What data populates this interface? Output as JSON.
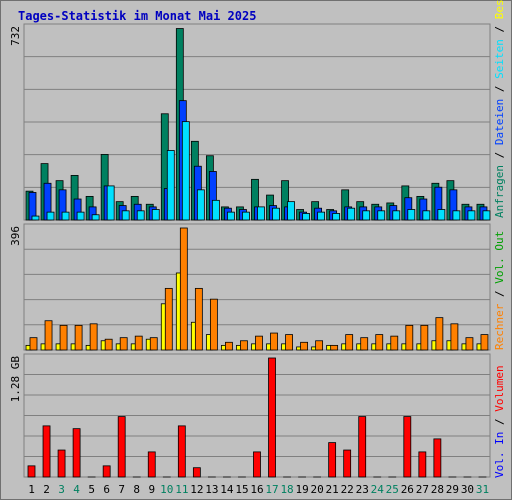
{
  "title": "Tages-Statistik im Monat Mai 2025",
  "colors": {
    "anfragen": "#008060",
    "dateien": "#0040ff",
    "seiten": "#00e0ff",
    "besuche": "#ffff00",
    "rechner": "#ff8000",
    "volumen": "#ff0000",
    "kbin": "#0000ff",
    "kbout": "#00a000",
    "grid": "#808080",
    "panel": "#c0c0c0",
    "weekday": "#000000",
    "weekend": "#008060"
  },
  "right_labels": {
    "top": [
      {
        "text": "Anfragen",
        "color": "#008060"
      },
      {
        "text": "Dateien",
        "color": "#0040ff"
      },
      {
        "text": "Seiten",
        "color": "#00e0ff"
      },
      {
        "text": "Besuche",
        "color": "#ffff00"
      }
    ],
    "middle": [
      {
        "text": "Rechner",
        "color": "#ff8000"
      },
      {
        "text": "Vol. Out",
        "color": "#00a000"
      }
    ],
    "bottom": [
      {
        "text": "Vol. In",
        "color": "#0000ff"
      },
      {
        "text": "Volumen",
        "color": "#ff0000"
      }
    ]
  },
  "chart_data": [
    {
      "type": "bar",
      "panel": "requests",
      "axis_max_label": "732",
      "ylim": [
        0,
        732
      ],
      "categories": [
        "1",
        "2",
        "3",
        "4",
        "5",
        "6",
        "7",
        "8",
        "9",
        "10",
        "11",
        "12",
        "13",
        "14",
        "15",
        "16",
        "17",
        "18",
        "19",
        "20",
        "21",
        "22",
        "23",
        "24",
        "25",
        "26",
        "27",
        "28",
        "29",
        "30",
        "31"
      ],
      "weekend_days": [
        3,
        4,
        10,
        11,
        17,
        18,
        24,
        25,
        31
      ],
      "series": [
        {
          "name": "Anfragen",
          "values": [
            110,
            215,
            150,
            170,
            90,
            250,
            70,
            90,
            60,
            405,
            730,
            300,
            245,
            50,
            50,
            155,
            95,
            150,
            40,
            70,
            40,
            115,
            70,
            60,
            65,
            130,
            90,
            140,
            150,
            60,
            60
          ]
        },
        {
          "name": "Dateien",
          "values": [
            105,
            140,
            115,
            80,
            50,
            130,
            55,
            60,
            50,
            120,
            455,
            205,
            185,
            45,
            40,
            50,
            55,
            50,
            30,
            45,
            35,
            50,
            50,
            50,
            55,
            85,
            80,
            125,
            115,
            50,
            50
          ]
        },
        {
          "name": "Seiten",
          "values": [
            15,
            30,
            30,
            30,
            20,
            130,
            35,
            35,
            40,
            265,
            375,
            115,
            75,
            30,
            30,
            50,
            45,
            70,
            25,
            30,
            25,
            45,
            35,
            35,
            35,
            40,
            35,
            40,
            35,
            35,
            35
          ]
        }
      ]
    },
    {
      "type": "bar",
      "panel": "visits",
      "axis_max_label": "396",
      "ylim": [
        0,
        396
      ],
      "categories": [
        "1",
        "2",
        "3",
        "4",
        "5",
        "6",
        "7",
        "8",
        "9",
        "10",
        "11",
        "12",
        "13",
        "14",
        "15",
        "16",
        "17",
        "18",
        "19",
        "20",
        "21",
        "22",
        "23",
        "24",
        "25",
        "26",
        "27",
        "28",
        "29",
        "30",
        "31"
      ],
      "series": [
        {
          "name": "Besuche",
          "values": [
            15,
            20,
            20,
            20,
            15,
            30,
            20,
            20,
            35,
            150,
            250,
            90,
            50,
            15,
            15,
            20,
            20,
            20,
            10,
            10,
            15,
            20,
            20,
            20,
            20,
            20,
            20,
            30,
            30,
            20,
            20
          ]
        },
        {
          "name": "Rechner",
          "values": [
            40,
            95,
            80,
            80,
            85,
            35,
            40,
            45,
            40,
            200,
            396,
            200,
            165,
            25,
            30,
            45,
            55,
            50,
            25,
            30,
            15,
            50,
            40,
            50,
            45,
            80,
            80,
            105,
            85,
            40,
            50
          ]
        }
      ]
    },
    {
      "type": "bar",
      "panel": "volume",
      "axis_max_label": "1.28 GB",
      "ylim": [
        0,
        1.28
      ],
      "categories": [
        "1",
        "2",
        "3",
        "4",
        "5",
        "6",
        "7",
        "8",
        "9",
        "10",
        "11",
        "12",
        "13",
        "14",
        "15",
        "16",
        "17",
        "18",
        "19",
        "20",
        "21",
        "22",
        "23",
        "24",
        "25",
        "26",
        "27",
        "28",
        "29",
        "30",
        "31"
      ],
      "series": [
        {
          "name": "Volumen",
          "values": [
            0.12,
            0.55,
            0.29,
            0.52,
            0.0,
            0.12,
            0.65,
            0.0,
            0.27,
            0.0,
            0.55,
            0.1,
            0.0,
            0.0,
            0.0,
            0.27,
            1.28,
            0.0,
            0.0,
            0.0,
            0.37,
            0.29,
            0.65,
            0.0,
            0.0,
            0.65,
            0.27,
            0.41,
            0.0,
            0.0,
            0.0
          ]
        }
      ]
    }
  ]
}
